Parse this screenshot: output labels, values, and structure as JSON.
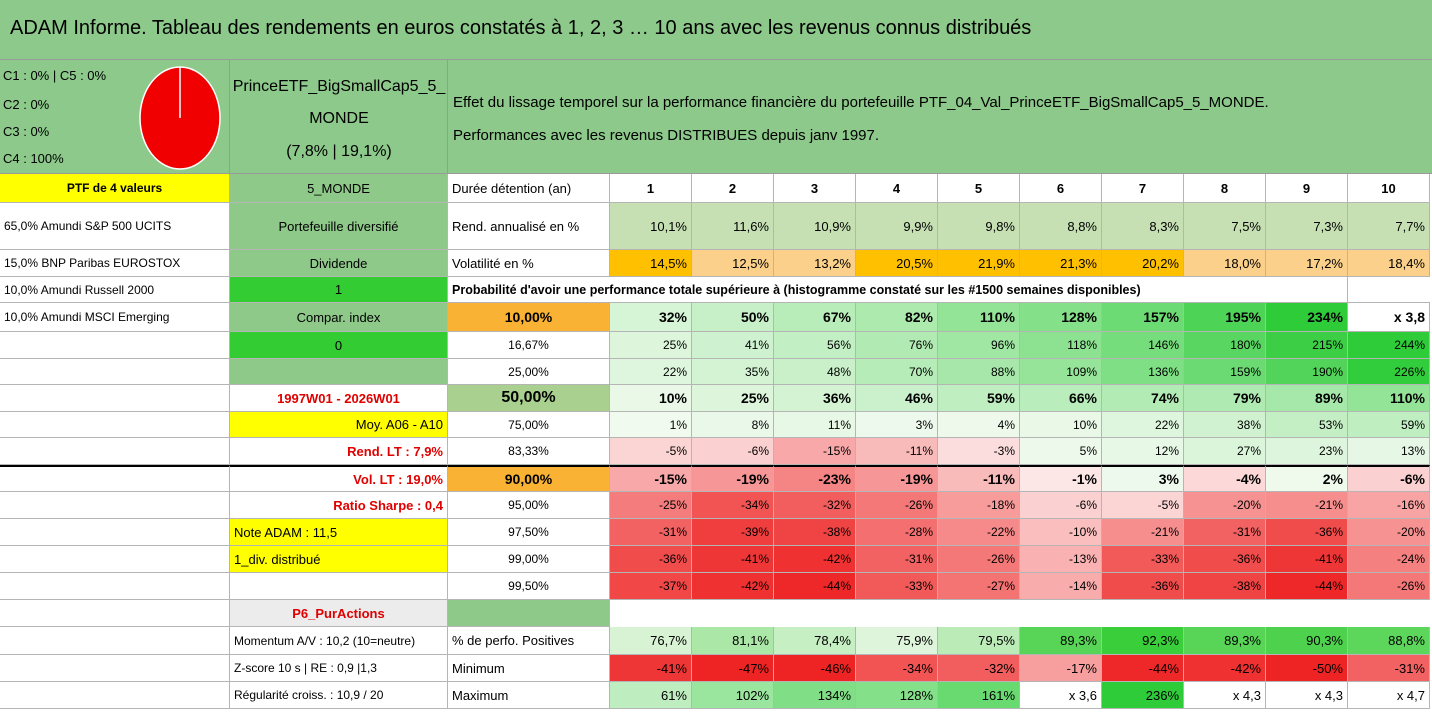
{
  "title": "ADAM Informe. Tableau des rendements en euros constatés à 1, 2, 3 … 10 ans avec les revenus connus distribués",
  "allocation": [
    "C1 : 0% | C5 : 0%",
    "C2 : 0%",
    "C3 : 0%",
    "C4 : 100%"
  ],
  "portfolio": [
    "PrinceETF_BigSmallCap5_5_",
    "MONDE",
    "(7,8% | 19,1%)"
  ],
  "description": [
    "Effet du lissage temporel sur la performance financière du portefeuille PTF_04_Val_PrinceETF_BigSmallCap5_5_MONDE.",
    "Performances avec les revenus DISTRIBUES depuis janv 1997."
  ],
  "rows": [
    [
      "PTF de 4 valeurs",
      "5_MONDE",
      "Durée détention (an)",
      "1",
      "2",
      "3",
      "4",
      "5",
      "6",
      "7",
      "8",
      "9",
      "10"
    ],
    [
      "65,0% Amundi S&P 500 UCITS",
      "Portefeuille diversifié",
      "Rend. annualisé en %",
      "10,1%",
      "11,6%",
      "10,9%",
      "9,9%",
      "9,8%",
      "8,8%",
      "8,3%",
      "7,5%",
      "7,3%",
      "7,7%"
    ],
    [
      "15,0% BNP Paribas EUROSTOX",
      "Dividende",
      "Volatilité en %",
      "14,5%",
      "12,5%",
      "13,2%",
      "20,5%",
      "21,9%",
      "21,3%",
      "20,2%",
      "18,0%",
      "17,2%",
      "18,4%"
    ],
    [
      "10,0% Amundi Russell 2000",
      "1",
      "Probabilité d'avoir une performance totale supérieure à (histogramme constaté sur les #1500 semaines disponibles)"
    ],
    [
      "10,0% Amundi MSCI Emerging",
      "Compar. index",
      "10,00%",
      "32%",
      "50%",
      "67%",
      "82%",
      "110%",
      "128%",
      "157%",
      "195%",
      "234%",
      "x 3,8"
    ],
    [
      null,
      "0",
      "16,67%",
      "25%",
      "41%",
      "56%",
      "76%",
      "96%",
      "118%",
      "146%",
      "180%",
      "215%",
      "244%"
    ],
    [
      null,
      null,
      "25,00%",
      "22%",
      "35%",
      "48%",
      "70%",
      "88%",
      "109%",
      "136%",
      "159%",
      "190%",
      "226%"
    ],
    [
      null,
      "1997W01 - 2026W01",
      "50,00%",
      "10%",
      "25%",
      "36%",
      "46%",
      "59%",
      "66%",
      "74%",
      "79%",
      "89%",
      "110%"
    ],
    [
      null,
      "Moy. A06 - A10",
      "75,00%",
      "1%",
      "8%",
      "11%",
      "3%",
      "4%",
      "10%",
      "22%",
      "38%",
      "53%",
      "59%"
    ],
    [
      null,
      "Rend. LT : 7,9%",
      "83,33%",
      "-5%",
      "-6%",
      "-15%",
      "-11%",
      "-3%",
      "5%",
      "12%",
      "27%",
      "23%",
      "13%"
    ],
    [
      null,
      "Vol. LT : 19,0%",
      "90,00%",
      "-15%",
      "-19%",
      "-23%",
      "-19%",
      "-11%",
      "-1%",
      "3%",
      "-4%",
      "2%",
      "-6%"
    ],
    [
      null,
      "Ratio Sharpe : 0,4",
      "95,00%",
      "-25%",
      "-34%",
      "-32%",
      "-26%",
      "-18%",
      "-6%",
      "-5%",
      "-20%",
      "-21%",
      "-16%"
    ],
    [
      null,
      "Note ADAM : 11,5",
      "97,50%",
      "-31%",
      "-39%",
      "-38%",
      "-28%",
      "-22%",
      "-10%",
      "-21%",
      "-31%",
      "-36%",
      "-20%"
    ],
    [
      null,
      "1_div. distribué",
      "99,00%",
      "-36%",
      "-41%",
      "-42%",
      "-31%",
      "-26%",
      "-13%",
      "-33%",
      "-36%",
      "-41%",
      "-24%"
    ],
    [
      null,
      null,
      "99,50%",
      "-37%",
      "-42%",
      "-44%",
      "-33%",
      "-27%",
      "-14%",
      "-36%",
      "-38%",
      "-44%",
      "-26%"
    ],
    [
      null,
      "P6_PurActions"
    ],
    [
      null,
      "Momentum A/V : 10,2 (10=neutre)",
      "% de perfo. Positives",
      "76,7%",
      "81,1%",
      "78,4%",
      "75,9%",
      "79,5%",
      "89,3%",
      "92,3%",
      "89,3%",
      "90,3%",
      "88,8%"
    ],
    [
      null,
      "Z-score 10 s | RE : 0,9 |1,3",
      "Minimum",
      "-41%",
      "-47%",
      "-46%",
      "-34%",
      "-32%",
      "-17%",
      "-44%",
      "-42%",
      "-50%",
      "-31%"
    ],
    [
      null,
      "Régularité croiss. : 10,9 / 20",
      "Maximum",
      "61%",
      "102%",
      "134%",
      "128%",
      "161%",
      "x 3,6",
      "236%",
      "x 4,3",
      "x 4,3",
      "x 4,7"
    ]
  ]
}
